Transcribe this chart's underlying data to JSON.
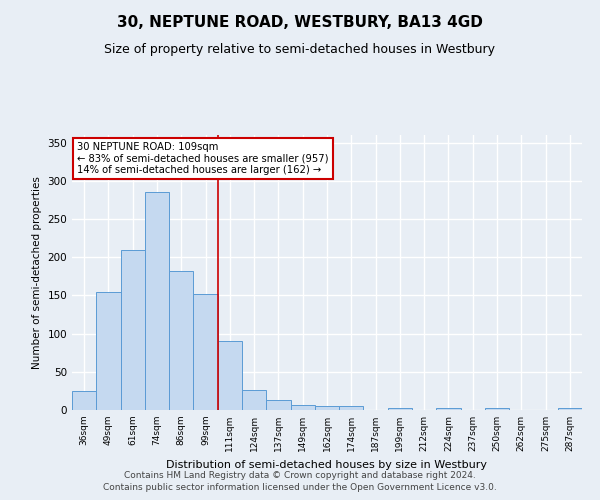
{
  "title": "30, NEPTUNE ROAD, WESTBURY, BA13 4GD",
  "subtitle": "Size of property relative to semi-detached houses in Westbury",
  "xlabel": "Distribution of semi-detached houses by size in Westbury",
  "ylabel": "Number of semi-detached properties",
  "categories": [
    "36sqm",
    "49sqm",
    "61sqm",
    "74sqm",
    "86sqm",
    "99sqm",
    "111sqm",
    "124sqm",
    "137sqm",
    "149sqm",
    "162sqm",
    "174sqm",
    "187sqm",
    "199sqm",
    "212sqm",
    "224sqm",
    "237sqm",
    "250sqm",
    "262sqm",
    "275sqm",
    "287sqm"
  ],
  "values": [
    25,
    155,
    210,
    285,
    182,
    152,
    90,
    26,
    13,
    6,
    5,
    5,
    0,
    3,
    0,
    3,
    0,
    2,
    0,
    0,
    2
  ],
  "bar_color": "#c5d9f0",
  "bar_edge_color": "#5b9bd5",
  "vline_x_index": 5.5,
  "vline_color": "#cc0000",
  "annotation_line1": "30 NEPTUNE ROAD: 109sqm",
  "annotation_line2": "← 83% of semi-detached houses are smaller (957)",
  "annotation_line3": "14% of semi-detached houses are larger (162) →",
  "annotation_box_color": "#ffffff",
  "annotation_box_edge": "#cc0000",
  "ylim": [
    0,
    360
  ],
  "yticks": [
    0,
    50,
    100,
    150,
    200,
    250,
    300,
    350
  ],
  "footer_line1": "Contains HM Land Registry data © Crown copyright and database right 2024.",
  "footer_line2": "Contains public sector information licensed under the Open Government Licence v3.0.",
  "bg_color": "#e8eef5",
  "plot_bg_color": "#e8eef5",
  "grid_color": "#ffffff",
  "title_fontsize": 11,
  "subtitle_fontsize": 9,
  "footer_fontsize": 6.5
}
